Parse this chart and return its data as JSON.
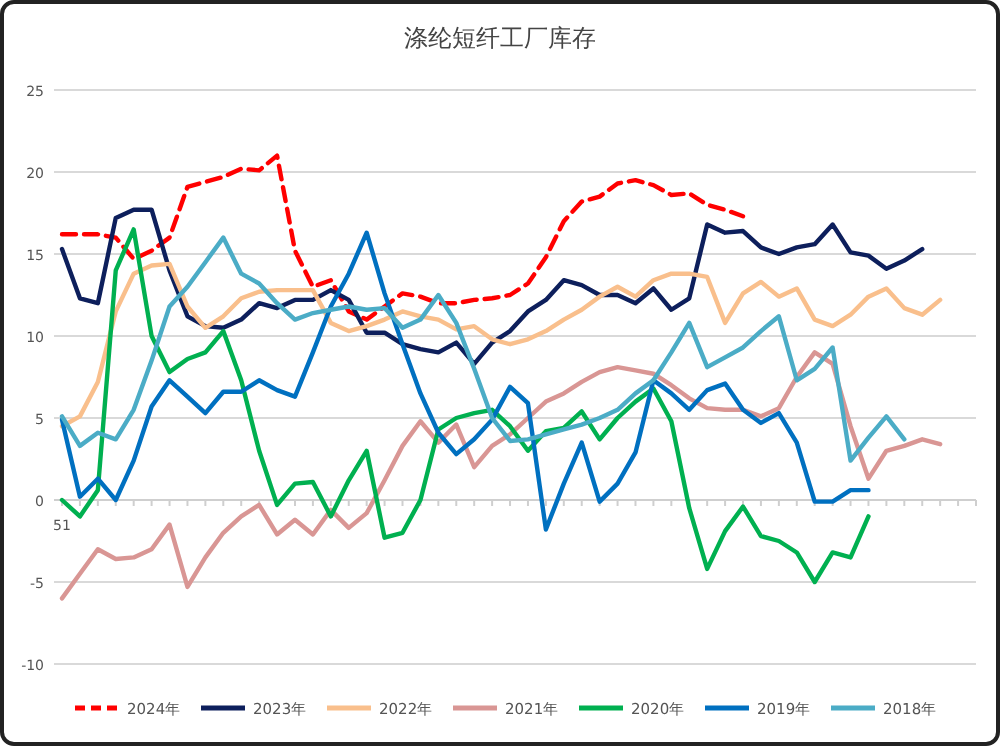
{
  "chart_data": {
    "type": "line",
    "title": "涤纶短纤工厂库存",
    "categories": [
      "51",
      null,
      null,
      null,
      null,
      null,
      null,
      null,
      null,
      null,
      null,
      null,
      null,
      null,
      null,
      null,
      null,
      null,
      null,
      null,
      null,
      null,
      null,
      null,
      null,
      null,
      null,
      null,
      null,
      null,
      null,
      null,
      null,
      null,
      null,
      null,
      null,
      null,
      null,
      null,
      null,
      null,
      null,
      null,
      null,
      null,
      null,
      null,
      null,
      null,
      null,
      null
    ],
    "ylim": [
      -10,
      25
    ],
    "yticks": [
      -10,
      -5,
      0,
      5,
      10,
      15,
      20,
      25
    ],
    "grid": "y",
    "legend": "bottom",
    "line_style": "solid",
    "series": [
      {
        "name": "2024年",
        "color": "#ff0000",
        "line_style": "dashed",
        "values": [
          16.2,
          16.2,
          16.2,
          16.0,
          14.7,
          15.2,
          16.0,
          19.1,
          19.4,
          19.7,
          20.2,
          20.1,
          21.0,
          15.2,
          13.0,
          13.4,
          11.5,
          11.0,
          11.8,
          12.6,
          12.4,
          12.0,
          12.0,
          12.2,
          12.3,
          12.5,
          13.2,
          14.8,
          17.0,
          18.2,
          18.5,
          19.3,
          19.5,
          19.2,
          18.6,
          18.7,
          18.0,
          17.7,
          17.3,
          null,
          null,
          null,
          null,
          null,
          null,
          null,
          null,
          null,
          null,
          null,
          null,
          null
        ]
      },
      {
        "name": "2023年",
        "color": "#0d1f5c",
        "values": [
          15.3,
          12.3,
          12.0,
          17.2,
          17.7,
          17.7,
          14.0,
          11.2,
          10.6,
          10.5,
          11.0,
          12.0,
          11.7,
          12.2,
          12.2,
          12.8,
          12.2,
          10.2,
          10.2,
          9.5,
          9.2,
          9.0,
          9.6,
          8.3,
          9.6,
          10.3,
          11.5,
          12.2,
          13.4,
          13.1,
          12.5,
          12.5,
          12.0,
          12.9,
          11.6,
          12.3,
          16.8,
          16.3,
          16.4,
          15.4,
          15.0,
          15.4,
          15.6,
          16.8,
          15.1,
          14.9,
          14.1,
          14.6,
          15.3,
          null,
          null,
          null
        ]
      },
      {
        "name": "2022年",
        "color": "#f9bf8c",
        "values": [
          4.5,
          5.1,
          7.2,
          11.5,
          13.8,
          14.3,
          14.4,
          11.8,
          10.5,
          11.2,
          12.3,
          12.7,
          12.8,
          12.8,
          12.8,
          10.8,
          10.3,
          10.6,
          11.0,
          11.5,
          11.2,
          11.0,
          10.4,
          10.6,
          9.8,
          9.5,
          9.8,
          10.3,
          11.0,
          11.6,
          12.4,
          13.0,
          12.4,
          13.4,
          13.8,
          13.8,
          13.6,
          10.8,
          12.6,
          13.3,
          12.4,
          12.9,
          11.0,
          10.6,
          11.3,
          12.4,
          12.9,
          11.7,
          11.3,
          12.2,
          null,
          null
        ]
      },
      {
        "name": "2021年",
        "color": "#d99694",
        "values": [
          -6.0,
          -4.5,
          -3.0,
          -3.6,
          -3.5,
          -3.0,
          -1.5,
          -5.3,
          -3.5,
          -2.0,
          -1.0,
          -0.3,
          -2.1,
          -1.2,
          -2.1,
          -0.6,
          -1.7,
          -0.8,
          1.2,
          3.3,
          4.8,
          3.5,
          4.6,
          2.0,
          3.3,
          4.0,
          5.0,
          6.0,
          6.5,
          7.2,
          7.8,
          8.1,
          7.9,
          7.7,
          7.0,
          6.2,
          5.6,
          5.5,
          5.5,
          5.1,
          5.6,
          7.5,
          9.0,
          8.3,
          4.5,
          1.3,
          3.0,
          3.3,
          3.7,
          3.4,
          null,
          null
        ]
      },
      {
        "name": "2020年",
        "color": "#00b050",
        "values": [
          0.0,
          -1.0,
          0.6,
          14.0,
          16.5,
          10.0,
          7.8,
          8.6,
          9.0,
          10.3,
          7.3,
          3.0,
          -0.3,
          1.0,
          1.1,
          -1.0,
          1.2,
          3.0,
          -2.3,
          -2.0,
          0.0,
          4.3,
          5.0,
          5.3,
          5.5,
          4.5,
          3.0,
          4.2,
          4.4,
          5.4,
          3.7,
          5.0,
          6.0,
          6.8,
          4.8,
          -0.5,
          -4.2,
          -1.9,
          -0.4,
          -2.2,
          -2.5,
          -3.2,
          -5.0,
          -3.2,
          -3.5,
          -1.0,
          null,
          null,
          null,
          null,
          null,
          null
        ]
      },
      {
        "name": "2019年",
        "color": "#0070c0",
        "values": [
          4.9,
          0.2,
          1.3,
          0.0,
          2.4,
          5.7,
          7.3,
          6.3,
          5.3,
          6.6,
          6.6,
          7.3,
          6.7,
          6.3,
          9.0,
          11.8,
          13.8,
          16.3,
          12.6,
          9.5,
          6.5,
          4.1,
          2.8,
          3.7,
          4.9,
          6.9,
          5.9,
          -1.8,
          1.0,
          3.5,
          -0.1,
          1.0,
          2.9,
          7.3,
          6.5,
          5.5,
          6.7,
          7.1,
          5.5,
          4.7,
          5.3,
          3.5,
          -0.1,
          -0.1,
          0.6,
          0.6,
          null,
          null,
          null,
          null,
          null,
          null
        ]
      },
      {
        "name": "2018年",
        "color": "#4bacc6",
        "values": [
          5.1,
          3.3,
          4.1,
          3.7,
          5.5,
          8.5,
          11.8,
          13.0,
          14.5,
          16.0,
          13.8,
          13.2,
          12.0,
          11.0,
          11.4,
          11.6,
          11.8,
          11.6,
          11.7,
          10.5,
          11.0,
          12.5,
          10.8,
          8.0,
          5.0,
          3.6,
          3.7,
          4.0,
          4.3,
          4.6,
          5.0,
          5.5,
          6.5,
          7.3,
          9.0,
          10.8,
          8.1,
          8.7,
          9.3,
          10.3,
          11.2,
          7.3,
          8.0,
          9.3,
          2.4,
          3.8,
          5.1,
          3.7,
          null,
          null,
          null,
          null
        ]
      }
    ]
  }
}
